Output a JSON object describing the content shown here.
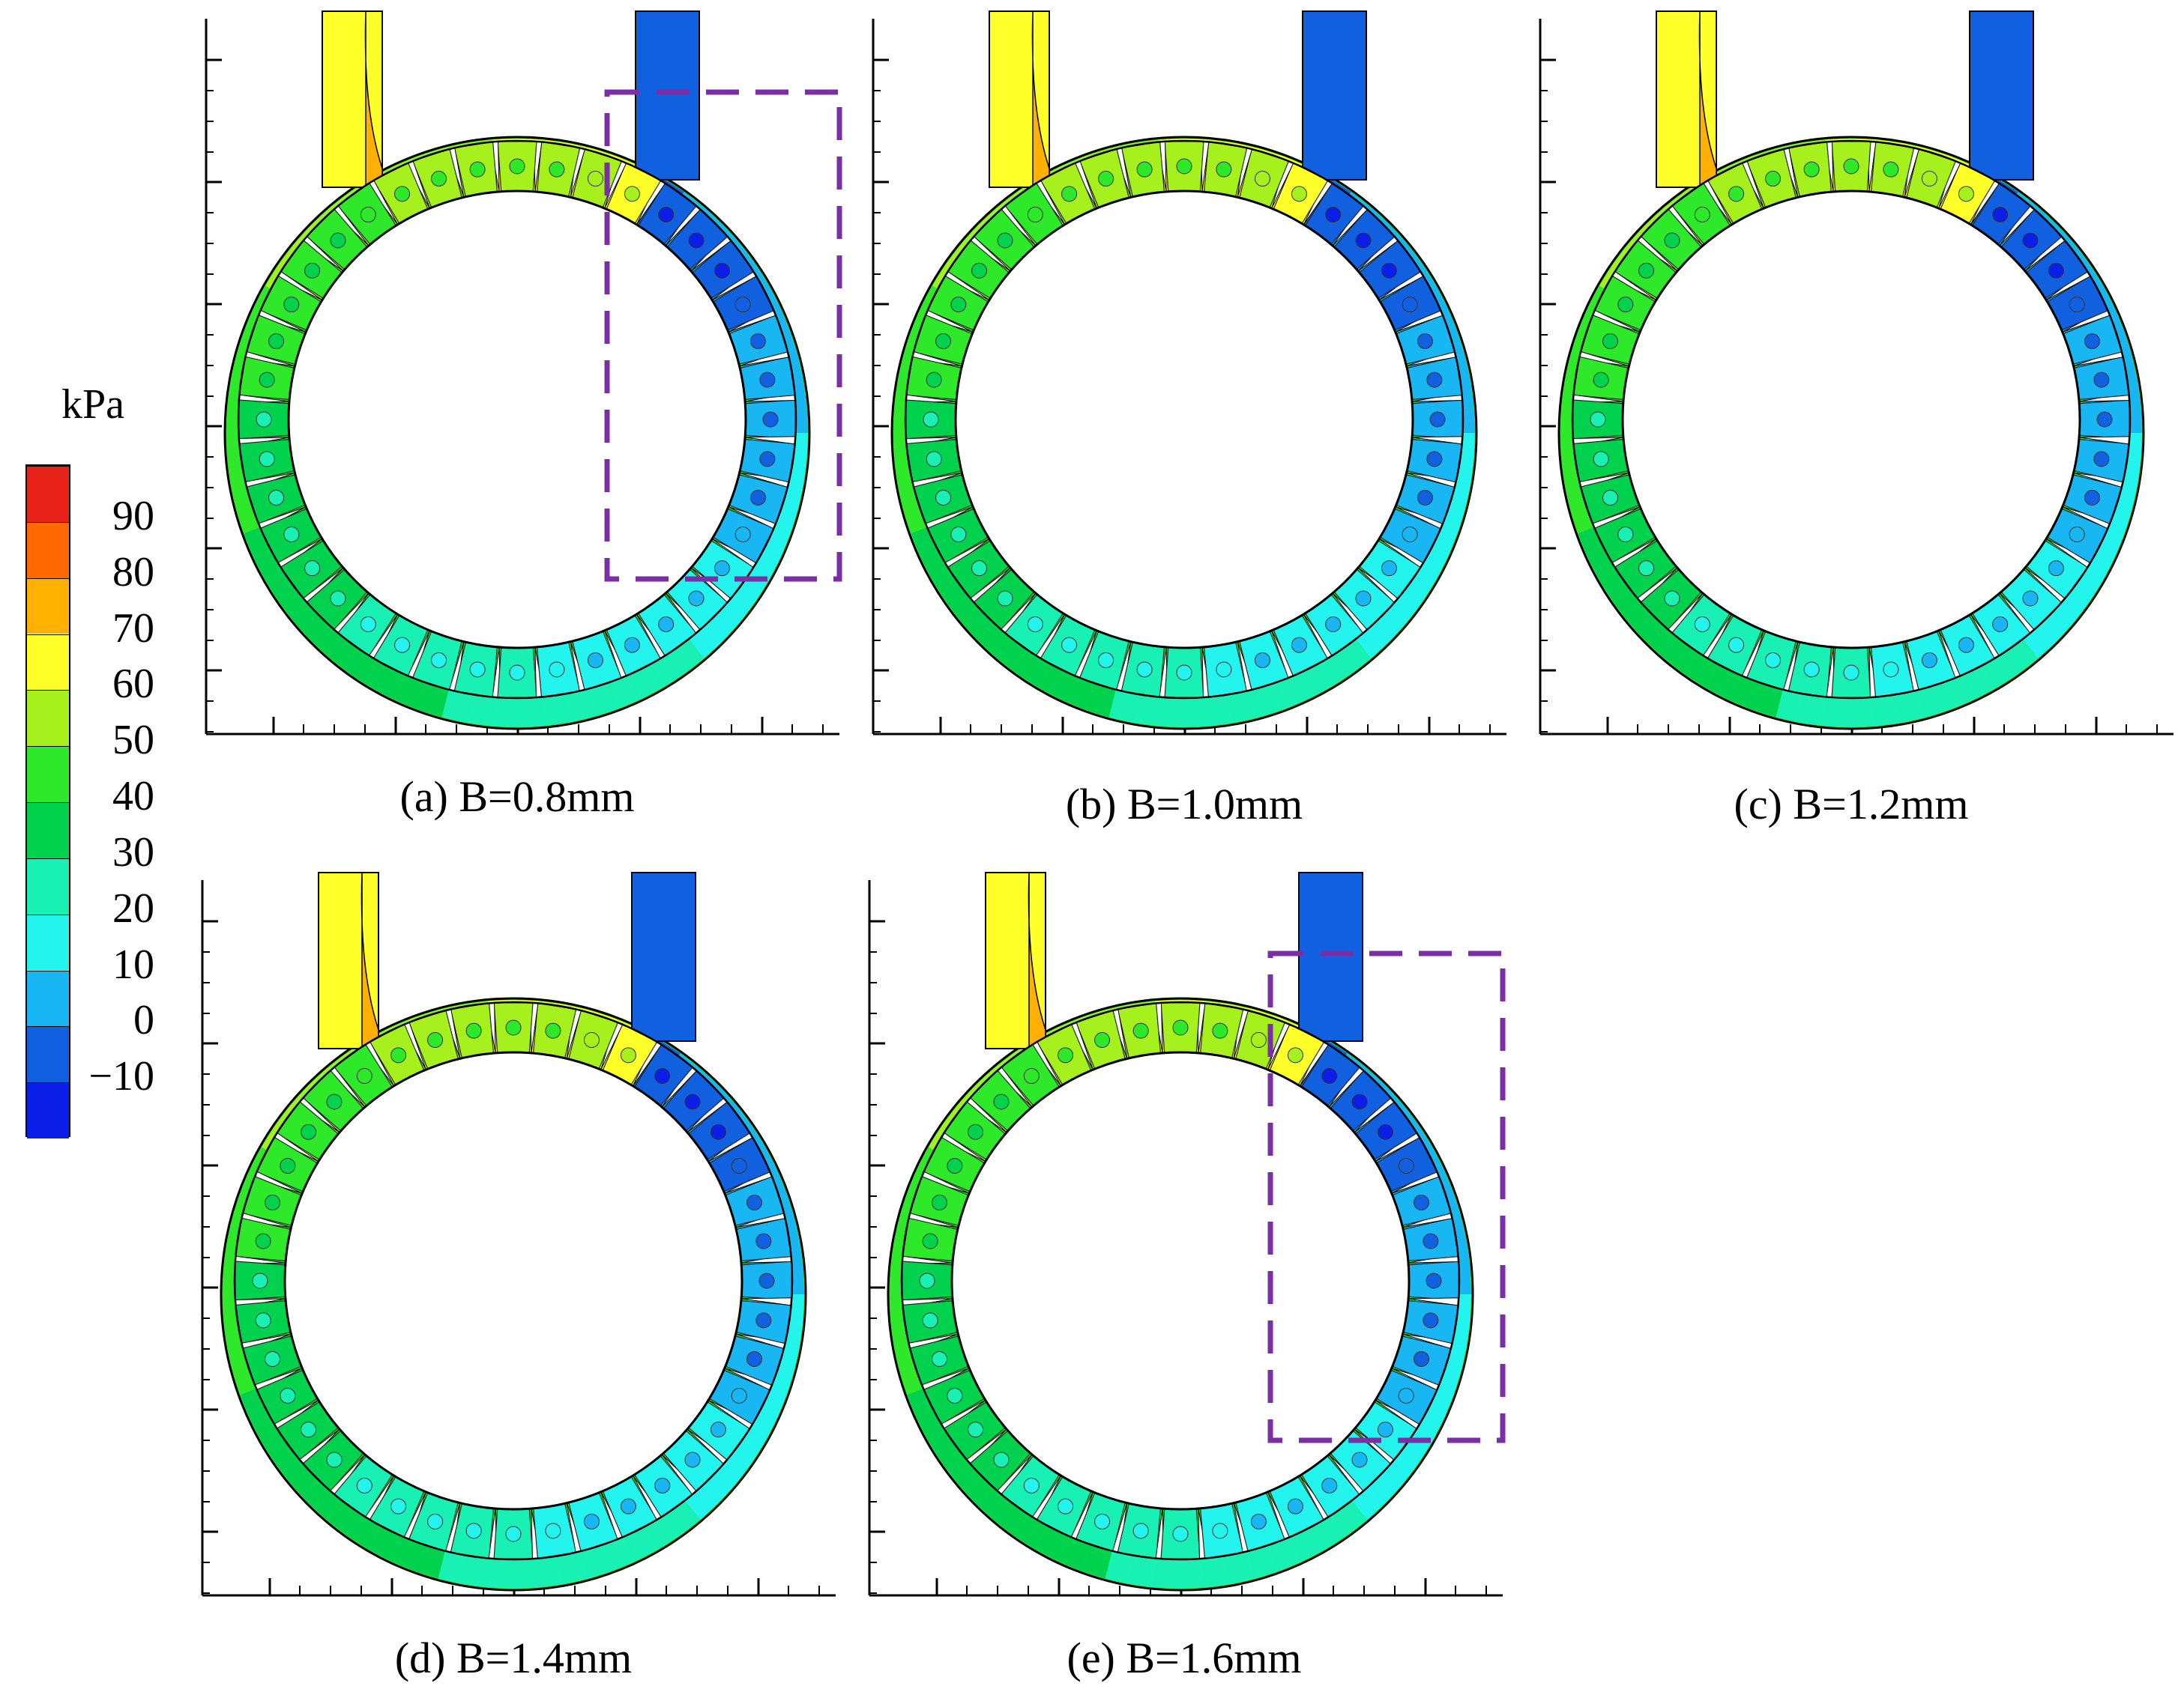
{
  "legend": {
    "unit": "kPa",
    "ticks": [
      "90",
      "80",
      "70",
      "60",
      "50",
      "40",
      "30",
      "20",
      "10",
      "0",
      "−10"
    ],
    "colors": [
      "#e8231a",
      "#ff6a00",
      "#ffb000",
      "#ffff2a",
      "#a6f01e",
      "#2ee82a",
      "#00d24d",
      "#19f0b4",
      "#23f5ee",
      "#18b6f2",
      "#1060e0",
      "#0b1ee8"
    ]
  },
  "panels": [
    {
      "caption": "(a) B=0.8mm",
      "highlight": true
    },
    {
      "caption": "(b) B=1.0mm",
      "highlight": false
    },
    {
      "caption": "(c) B=1.2mm",
      "highlight": false
    },
    {
      "caption": "(d) B=1.4mm",
      "highlight": false
    },
    {
      "caption": "(e) B=1.6mm",
      "highlight": true
    }
  ]
}
